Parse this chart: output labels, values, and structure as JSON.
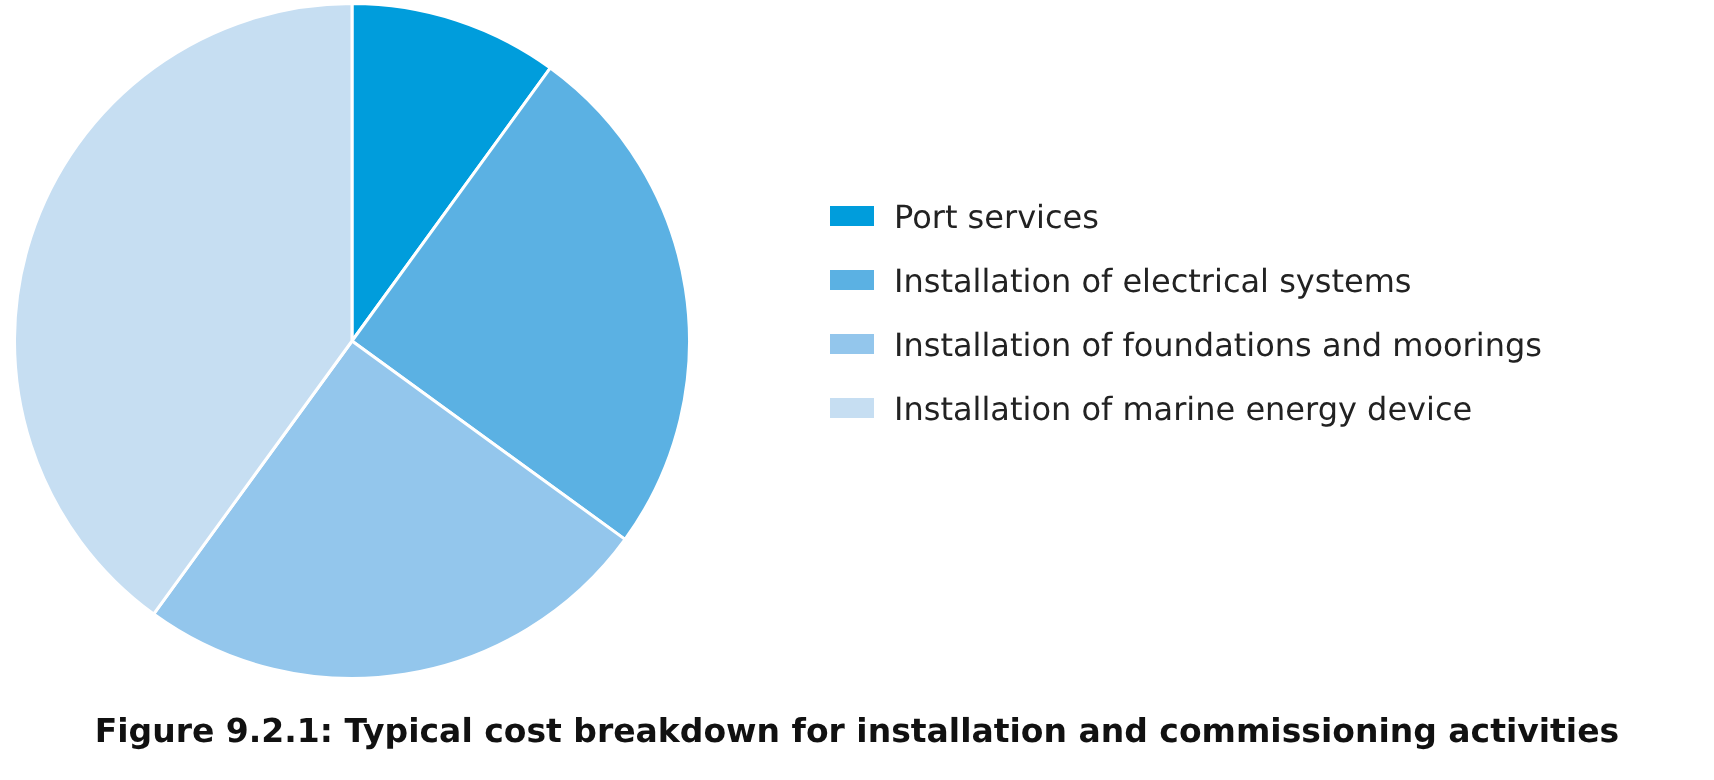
{
  "chart_data": {
    "type": "pie",
    "title": "Figure 9.2.1: Typical cost breakdown for installation and commissioning activities",
    "categories": [
      "Port services",
      "Installation of electrical systems",
      "Installation of foundations and moorings",
      "Installation of marine energy device"
    ],
    "values": [
      10,
      25,
      25,
      40
    ],
    "colors": [
      "#009ddc",
      "#5bb1e3",
      "#93c6ec",
      "#c6def2"
    ],
    "legend": "right"
  }
}
